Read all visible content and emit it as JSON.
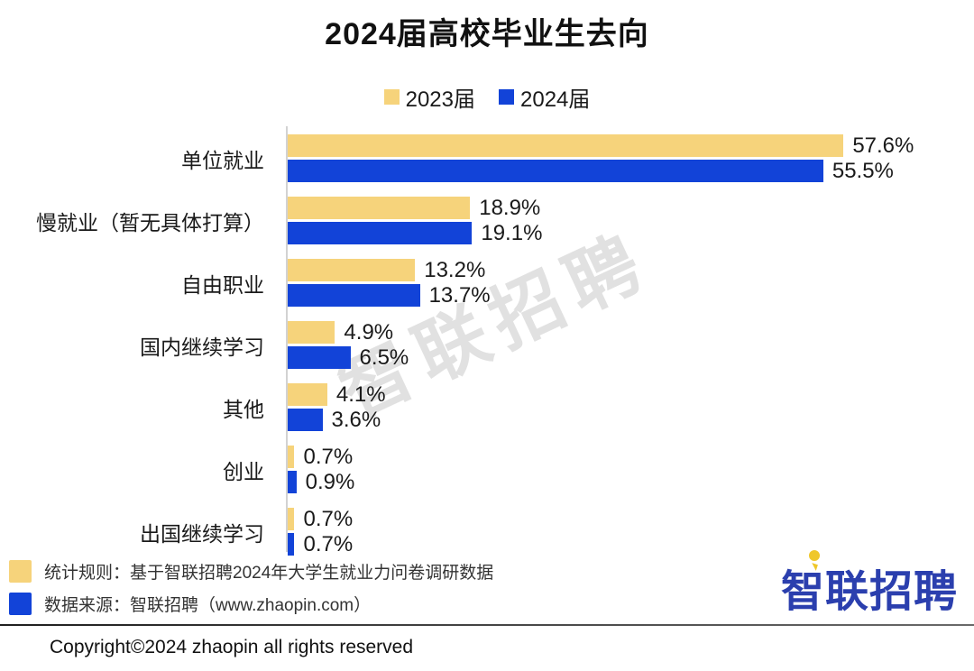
{
  "title": "2024届高校毕业生去向",
  "colors": {
    "series_2023": "#f6d37b",
    "series_2024": "#1243d8",
    "logo_blue": "#2b3fae",
    "logo_pin_yellow": "#efc72a",
    "axis_gray": "#d2d2d2"
  },
  "legend": {
    "items": [
      {
        "label": "2023届",
        "color": "#f6d37b"
      },
      {
        "label": "2024届",
        "color": "#1243d8"
      }
    ]
  },
  "chart_data": {
    "type": "bar",
    "orientation": "horizontal",
    "title": "2024届高校毕业生去向",
    "categories": [
      "单位就业",
      "慢就业（暂无具体打算）",
      "自由职业",
      "国内继续学习",
      "其他",
      "创业",
      "出国继续学习"
    ],
    "series": [
      {
        "name": "2023届",
        "color": "#f6d37b",
        "values": [
          57.6,
          18.9,
          13.2,
          4.9,
          4.1,
          0.7,
          0.7
        ]
      },
      {
        "name": "2024届",
        "color": "#1243d8",
        "values": [
          55.5,
          19.1,
          13.7,
          6.5,
          3.6,
          0.9,
          0.7
        ]
      }
    ],
    "value_suffix": "%",
    "data_labels": true,
    "xlim": [
      0,
      70
    ],
    "grid": false,
    "legend_position": "top"
  },
  "watermark": "智联招聘",
  "footnotes": [
    {
      "swatch_color": "#f6d37b",
      "text": "统计规则：基于智联招聘2024年大学生就业力问卷调研数据"
    },
    {
      "swatch_color": "#1243d8",
      "text": "数据来源：智联招聘（www.zhaopin.com）"
    }
  ],
  "logo": {
    "text": "智联招聘"
  },
  "copyright": "Copyright©2024 zhaopin all rights reserved"
}
